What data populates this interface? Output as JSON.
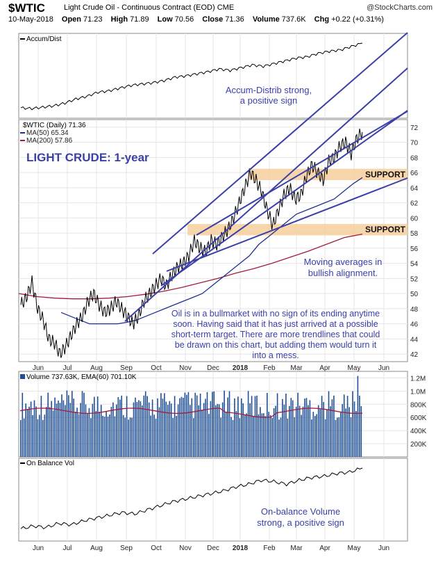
{
  "header": {
    "symbol": "$WTIC",
    "title": "Light Crude Oil - Continuous Contract (EOD)",
    "exchange": "CME",
    "brand": "@StockCharts.com",
    "date": "10-May-2018",
    "open_label": "Open",
    "open": "71.23",
    "high_label": "High",
    "high": "71.89",
    "low_label": "Low",
    "low": "70.56",
    "close_label": "Close",
    "close": "71.36",
    "volume_label": "Volume",
    "volume": "737.6K",
    "chg_label": "Chg",
    "chg": "+0.22 (+0.31%)"
  },
  "colors": {
    "price": "#000000",
    "ma50": "#1f2f8f",
    "ma200": "#a01c3c",
    "trendline": "#3b3fa8",
    "support_band": "#f6cf9c",
    "volume_bar": "#1f4f95",
    "annotation": "#3b3fa8"
  },
  "chart_data": [
    {
      "type": "line",
      "panel": "accum-dist",
      "legend": "Accum/Dist",
      "annotation": [
        "Accum-Distrib strong,",
        "a positive sign"
      ],
      "series": [
        {
          "name": "Accum/Dist",
          "values": [
            0.05,
            0.04,
            0.06,
            0.08,
            0.12,
            0.18,
            0.22,
            0.28,
            0.3,
            0.34,
            0.38,
            0.4,
            0.42,
            0.45,
            0.5,
            0.52,
            0.55,
            0.58,
            0.62,
            0.6,
            0.64,
            0.68,
            0.66,
            0.7,
            0.74,
            0.78,
            0.8,
            0.85,
            0.88,
            0.9,
            0.95,
            1.0
          ]
        }
      ]
    },
    {
      "type": "line",
      "panel": "price",
      "label": "LIGHT CRUDE: 1-year",
      "legend": [
        "$WTIC (Daily) 71.36",
        "MA(50) 65.34",
        "MA(200) 57.86"
      ],
      "ylim": [
        41,
        73
      ],
      "y_ticks": [
        "72",
        "70",
        "68",
        "66",
        "64",
        "62",
        "60",
        "58",
        "56",
        "54",
        "52",
        "50",
        "48",
        "46",
        "44",
        "42"
      ],
      "x_ticks": [
        "Jun",
        "Jul",
        "Aug",
        "Sep",
        "Oct",
        "Nov",
        "Dec",
        "2018",
        "Feb",
        "Mar",
        "Apr",
        "May",
        "Jun"
      ],
      "series": [
        {
          "name": "$WTIC (Daily)",
          "values": [
            48.5,
            49.5,
            51.5,
            48.0,
            46.5,
            44.0,
            43.5,
            42.0,
            43.0,
            44.5,
            46.0,
            47.0,
            49.0,
            50.0,
            48.5,
            47.5,
            48.0,
            49.0,
            48.0,
            47.0,
            46.0,
            47.0,
            49.0,
            50.0,
            51.0,
            52.0,
            51.0,
            52.5,
            53.5,
            54.0,
            55.0,
            57.0,
            56.0,
            55.5,
            57.0,
            56.5,
            57.5,
            58.5,
            60.0,
            62.0,
            64.0,
            66.0,
            65.0,
            63.5,
            61.0,
            59.0,
            61.0,
            63.0,
            64.0,
            62.5,
            63.0,
            65.5,
            67.0,
            66.0,
            65.0,
            67.5,
            68.0,
            69.5,
            70.0,
            68.5,
            70.5,
            71.36
          ]
        },
        {
          "name": "MA(50)",
          "values": [
            47.5,
            47.0,
            46.5,
            46.0,
            46.0,
            46.0,
            46.0,
            46.2,
            46.5,
            47.0,
            47.5,
            48.0,
            48.5,
            49.0,
            49.5,
            50.0,
            51.0,
            52.0,
            53.0,
            54.0,
            55.0,
            56.5,
            57.5,
            58.5,
            59.5,
            60.5,
            61.0,
            61.5,
            62.0,
            62.5,
            63.5,
            64.5,
            65.34
          ]
        },
        {
          "name": "MA(200)",
          "values": [
            50.0,
            49.6,
            49.4,
            49.3,
            49.3,
            49.4,
            49.6,
            49.9,
            50.3,
            50.8,
            51.4,
            52.0,
            52.7,
            53.3,
            54.0,
            54.8,
            55.6,
            56.5,
            57.4,
            57.86
          ]
        }
      ],
      "bands": [
        {
          "label": "SUPPORT",
          "range": [
            65,
            66.5
          ]
        },
        {
          "label": "SUPPORT",
          "range": [
            57.7,
            59.2
          ]
        }
      ],
      "annotations": [
        "Moving averages in",
        "bullish alignment.",
        "Oil is in a bullmarket with no sign of its ending anytime",
        "soon. Having said that it has just arrived at a possible",
        "short-term target. There are more trendlines that could",
        "be drawn on this chart, but adding them would turn it",
        "into a mess."
      ]
    },
    {
      "type": "bar",
      "panel": "volume",
      "legend": "Volume 737.63K, EMA(60) 701.10K",
      "y_ticks": [
        "1.2M",
        "1.0M",
        "800K",
        "600K",
        "400K",
        "200K"
      ],
      "ylim": [
        0,
        1300000
      ],
      "ema_level": 701100
    },
    {
      "type": "line",
      "panel": "on-balance-volume",
      "legend": "On Balance Vol",
      "annotation": [
        "On-balance  Volume",
        "strong, a positive sign"
      ],
      "x_ticks": [
        "Jun",
        "Jul",
        "Aug",
        "Sep",
        "Oct",
        "Nov",
        "Dec",
        "2018",
        "Feb",
        "Mar",
        "Apr",
        "May",
        "Jun"
      ],
      "series": [
        {
          "name": "On Balance Vol",
          "values": [
            0.1,
            0.14,
            0.12,
            0.18,
            0.16,
            0.22,
            0.26,
            0.3,
            0.34,
            0.32,
            0.38,
            0.44,
            0.5,
            0.54,
            0.58,
            0.62,
            0.66,
            0.72,
            0.76,
            0.82,
            0.8,
            0.76,
            0.82,
            0.86,
            0.88,
            0.92,
            0.94,
            1.0
          ]
        }
      ]
    }
  ]
}
